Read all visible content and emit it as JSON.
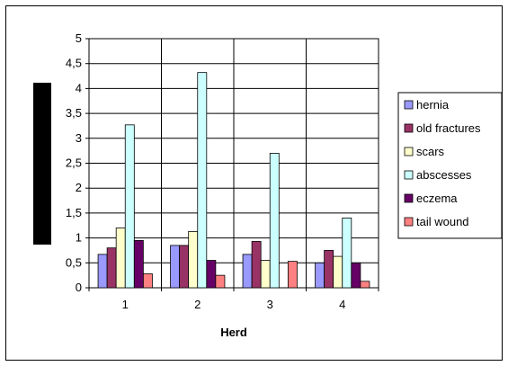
{
  "chart_data": {
    "type": "bar",
    "xlabel": "Herd",
    "ylabel": "",
    "categories": [
      "1",
      "2",
      "3",
      "4"
    ],
    "ylim": [
      0,
      5
    ],
    "yticks": [
      "0",
      "0,5",
      "1",
      "1,5",
      "2",
      "2,5",
      "3",
      "3,5",
      "4",
      "4,5",
      "5"
    ],
    "grid": true,
    "legend_position": "right",
    "series": [
      {
        "name": "hernia",
        "color": "#9999ff",
        "values": [
          0.67,
          0.85,
          0.67,
          0.5
        ]
      },
      {
        "name": "old fractures",
        "color": "#993366",
        "values": [
          0.8,
          0.85,
          0.93,
          0.75
        ]
      },
      {
        "name": "scars",
        "color": "#ffffcc",
        "values": [
          1.2,
          1.13,
          0.55,
          0.63
        ]
      },
      {
        "name": "abscesses",
        "color": "#ccffff",
        "values": [
          3.27,
          4.32,
          2.7,
          1.4
        ]
      },
      {
        "name": "eczema",
        "color": "#660066",
        "values": [
          0.95,
          0.55,
          null,
          0.5
        ]
      },
      {
        "name": "tail wound",
        "color": "#ff8080",
        "values": [
          0.28,
          0.25,
          0.53,
          0.13
        ]
      }
    ]
  }
}
